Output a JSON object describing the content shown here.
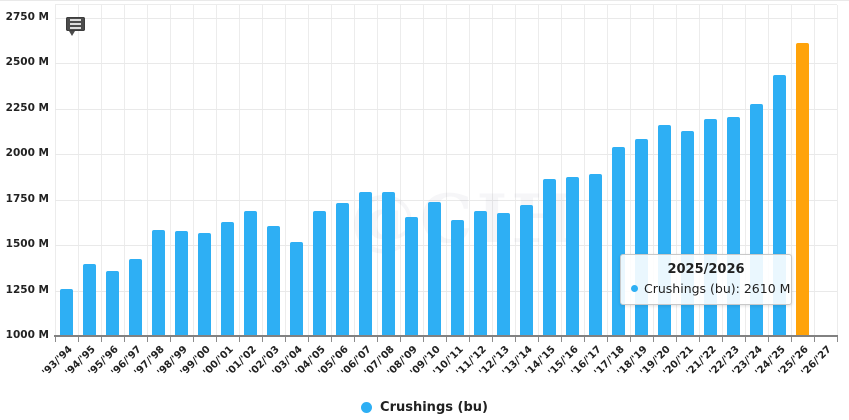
{
  "colors": {
    "bar": "#2EAFF4",
    "highlight": "#FFA30A",
    "grid": "#ececec",
    "axis": "#818181",
    "text": "#222222"
  },
  "chart_data": {
    "type": "bar",
    "title": "",
    "xlabel": "",
    "ylabel": "",
    "ylim": [
      1000,
      2750
    ],
    "ytick_step": 250,
    "ytick_labels": [
      "2750 M",
      "2500 M",
      "2250 M",
      "2000 M",
      "1750 M",
      "1500 M",
      "1250 M",
      "1000 M"
    ],
    "grid": "both",
    "legend_position": "bottom-center",
    "categories": [
      "'93/'94",
      "'94/'95",
      "'95/'96",
      "'96/'97",
      "'97/'98",
      "'98/'99",
      "'99/'00",
      "'00/'01",
      "'01/'02",
      "'02/'03",
      "'03/'04",
      "'04/'05",
      "'05/'06",
      "'06/'07",
      "'07/'08",
      "'08/'09",
      "'09/'10",
      "'10/'11",
      "'11/'12",
      "'12/'13",
      "'13/'14",
      "'14/'15",
      "'15/'16",
      "'16/'17",
      "'17/'18",
      "'18/'19",
      "'19/'20",
      "'20/'21",
      "'21/'22",
      "'22/'23",
      "'23/'24",
      "'24/'25",
      "'25/'26",
      "'26/'27"
    ],
    "series": [
      {
        "name": "Crushings (bu)",
        "color": "#2EAFF4",
        "values": [
          1260,
          1395,
          1360,
          1425,
          1585,
          1580,
          1565,
          1630,
          1690,
          1605,
          1520,
          1690,
          1730,
          1795,
          1790,
          1655,
          1740,
          1640,
          1690,
          1675,
          1720,
          1865,
          1875,
          1890,
          2040,
          2085,
          2160,
          2130,
          2195,
          2205,
          2275,
          2435,
          2610,
          null
        ]
      }
    ],
    "highlight": {
      "category": "'25/'26",
      "value": 2610,
      "color": "#FFA30A"
    },
    "watermark": "@CIH"
  },
  "tooltip": {
    "title": "2025/2026",
    "text": "Crushings (bu): 2610 M"
  },
  "legend": {
    "label": "Crushings (bu)"
  }
}
